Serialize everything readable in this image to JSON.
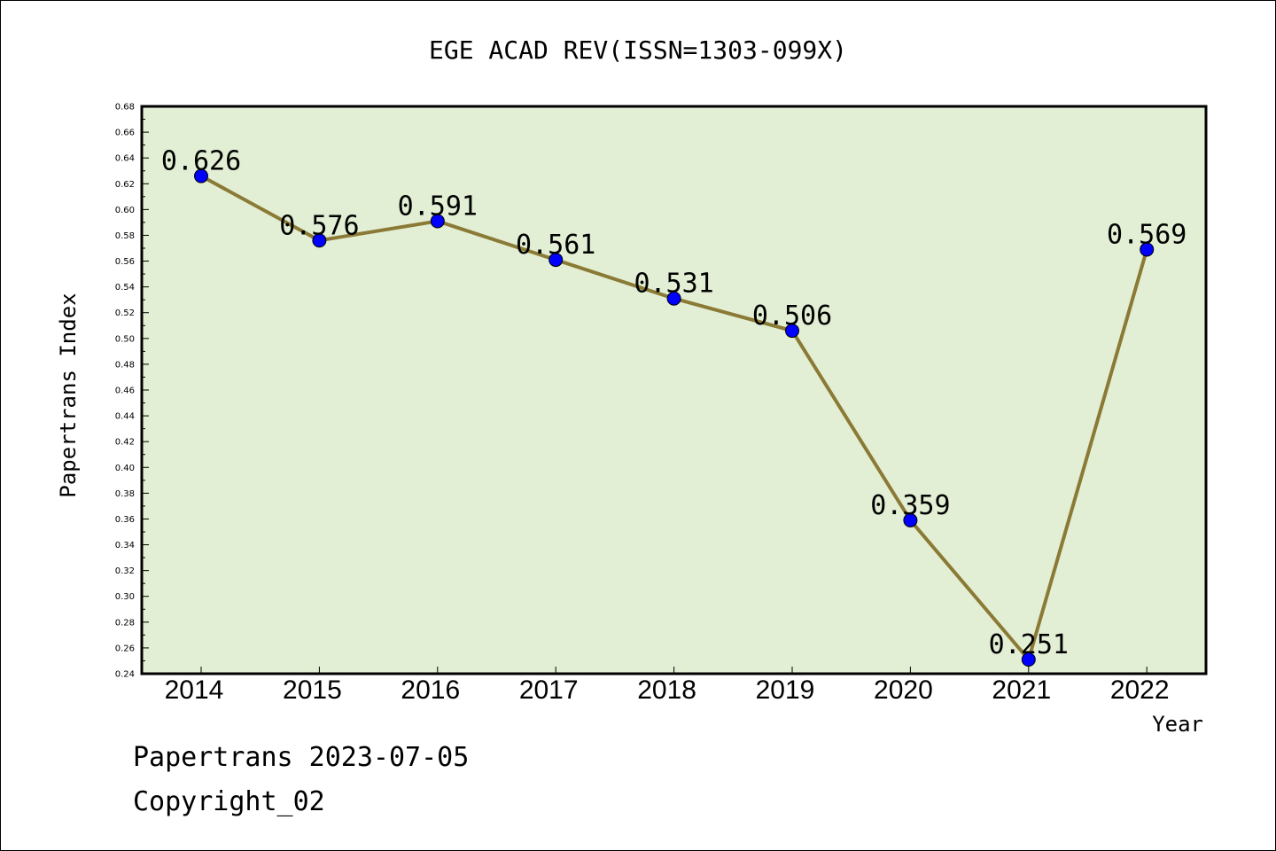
{
  "chart_data": {
    "type": "line",
    "title": "EGE ACAD REV(ISSN=1303-099X)",
    "xlabel": "Year",
    "ylabel": "Papertrans Index",
    "categories": [
      "2014",
      "2015",
      "2016",
      "2017",
      "2018",
      "2019",
      "2020",
      "2021",
      "2022"
    ],
    "series": [
      {
        "values": [
          0.626,
          0.576,
          0.591,
          0.561,
          0.531,
          0.506,
          0.359,
          0.251,
          0.569
        ],
        "labels": [
          "0.626",
          "0.576",
          "0.591",
          "0.561",
          "0.531",
          "0.506",
          "0.359",
          "0.251",
          "0.569"
        ]
      }
    ],
    "ylim": [
      0.24,
      0.68
    ],
    "yticks": [
      "0.24",
      "0.26",
      "0.28",
      "0.30",
      "0.32",
      "0.34",
      "0.36",
      "0.38",
      "0.40",
      "0.42",
      "0.44",
      "0.46",
      "0.48",
      "0.50",
      "0.52",
      "0.54",
      "0.56",
      "0.58",
      "0.60",
      "0.62",
      "0.64",
      "0.66",
      "0.68"
    ],
    "grid": false,
    "colors": {
      "plot_bg": "#e2efd4",
      "line": "#8b7a35",
      "marker": "#0000ff"
    }
  },
  "footer": {
    "date_text": "Papertrans 2023-07-05",
    "copyright": "Copyright_02"
  }
}
